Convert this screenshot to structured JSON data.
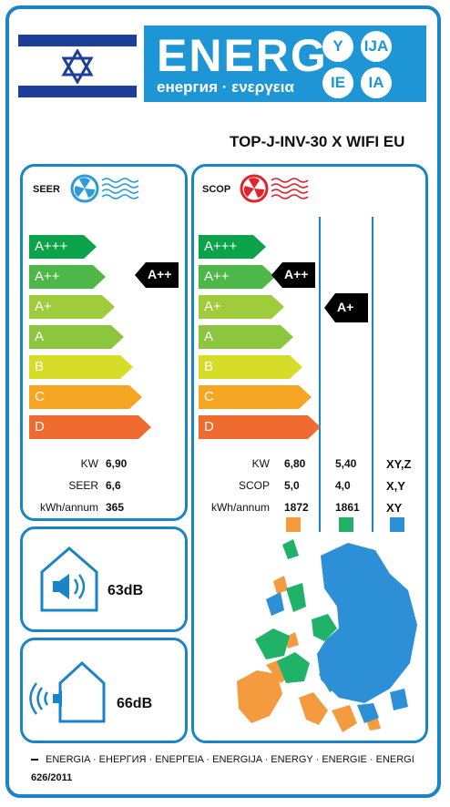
{
  "header": {
    "energ_word": "ENERG",
    "energ_subtitle": "енергия · ενεργεια",
    "suffixes": [
      "Y",
      "IJA",
      "IE",
      "IA"
    ]
  },
  "model": "TOP-J-INV-30 X WIFI EU",
  "seer": {
    "title": "SEER",
    "classes": [
      "A+++",
      "A++",
      "A+",
      "A",
      "B",
      "C",
      "D"
    ],
    "rating": "A++",
    "labels": [
      "KW",
      "SEER",
      "kWh/annum"
    ],
    "values": [
      "6,90",
      "6,6",
      "365"
    ]
  },
  "scop": {
    "title": "SCOP",
    "classes": [
      "A+++",
      "A++",
      "A+",
      "A",
      "B",
      "C",
      "D"
    ],
    "rating_warm": "A++",
    "rating_avg": "A+",
    "labels": [
      "KW",
      "SCOP",
      "kWh/annum"
    ],
    "col1": [
      "6,80",
      "5,0",
      "1872"
    ],
    "col2": [
      "5,40",
      "4,0",
      "1861"
    ],
    "col3": [
      "XY,Z",
      "X,Y",
      "XY"
    ]
  },
  "noise": {
    "indoor": "63dB",
    "outdoor": "66dB"
  },
  "footer": {
    "languages": "ENERGIA · ЕНЕРГИЯ · ΕΝΕΡΓΕΙΑ · ENERGIJA · ENERGY · ENERGIE · ENERGI",
    "regulation": "626/2011"
  },
  "colors": {
    "blue": "#1e96d6",
    "class_colors": [
      "#0aa34a",
      "#4db848",
      "#9fcc3b",
      "#8cc63f",
      "#d6dc28",
      "#f6a623",
      "#ef6b2f"
    ],
    "zone_warm": "#f49b3f",
    "zone_avg": "#1fb268",
    "zone_cold": "#2d8fd5"
  }
}
